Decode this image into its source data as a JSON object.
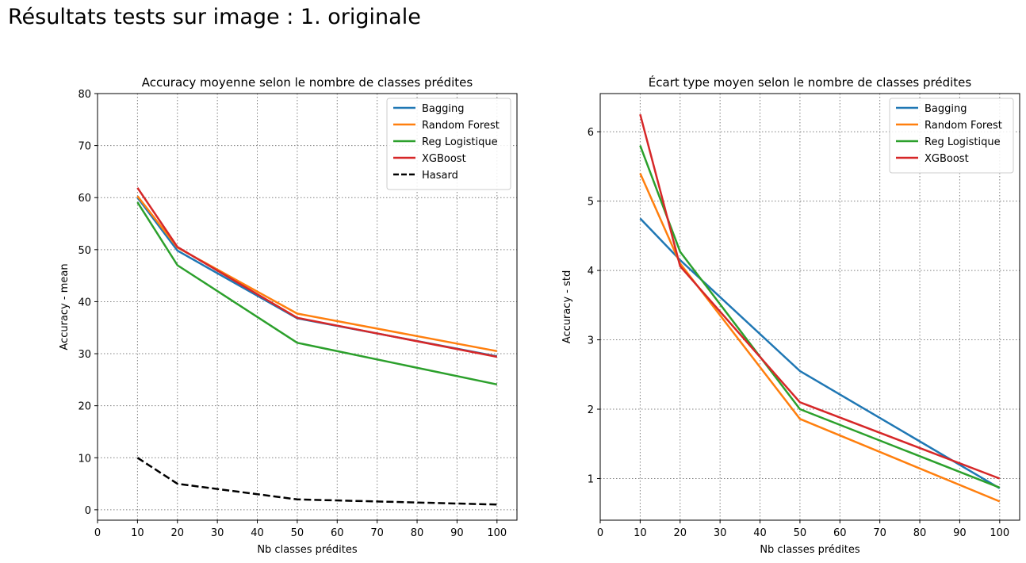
{
  "suptitle": "Résultats tests sur image : 1. originale",
  "chart_data": [
    {
      "type": "line",
      "title": "Accuracy moyenne selon le nombre de classes prédites",
      "xlabel": "Nb classes prédites",
      "ylabel": "Accuracy - mean",
      "xlim": [
        0,
        105
      ],
      "ylim": [
        -2,
        80
      ],
      "xticks": [
        0,
        10,
        20,
        30,
        40,
        50,
        60,
        70,
        80,
        90,
        100
      ],
      "yticks": [
        0,
        10,
        20,
        30,
        40,
        50,
        60,
        70,
        80
      ],
      "grid": true,
      "legend_position": "top-right",
      "x": [
        10,
        20,
        50,
        100
      ],
      "series": [
        {
          "name": "Bagging",
          "values": [
            60.0,
            49.8,
            36.8,
            29.5
          ],
          "color": "#1f77b4",
          "dashed": false
        },
        {
          "name": "Random Forest",
          "values": [
            60.3,
            50.4,
            37.7,
            30.5
          ],
          "color": "#ff7f0e",
          "dashed": false
        },
        {
          "name": "Reg Logistique",
          "values": [
            59.1,
            47.0,
            32.1,
            24.1
          ],
          "color": "#2ca02c",
          "dashed": false
        },
        {
          "name": "XGBoost",
          "values": [
            61.9,
            50.5,
            36.9,
            29.4
          ],
          "color": "#d62728",
          "dashed": false
        },
        {
          "name": "Hasard",
          "values": [
            10,
            5,
            2,
            1
          ],
          "color": "#000000",
          "dashed": true
        }
      ]
    },
    {
      "type": "line",
      "title": "Écart type moyen selon le nombre de classes prédites",
      "xlabel": "Nb classes prédites",
      "ylabel": "Accuracy - std",
      "xlim": [
        0,
        105
      ],
      "ylim": [
        0.4,
        6.55
      ],
      "xticks": [
        0,
        10,
        20,
        30,
        40,
        50,
        60,
        70,
        80,
        90,
        100
      ],
      "yticks": [
        1,
        2,
        3,
        4,
        5,
        6
      ],
      "grid": true,
      "legend_position": "top-right",
      "x": [
        10,
        20,
        50,
        100
      ],
      "series": [
        {
          "name": "Bagging",
          "values": [
            4.75,
            4.15,
            2.55,
            0.86
          ],
          "color": "#1f77b4",
          "dashed": false
        },
        {
          "name": "Random Forest",
          "values": [
            5.4,
            4.1,
            1.86,
            0.67
          ],
          "color": "#ff7f0e",
          "dashed": false
        },
        {
          "name": "Reg Logistique",
          "values": [
            5.8,
            4.27,
            2.0,
            0.87
          ],
          "color": "#2ca02c",
          "dashed": false
        },
        {
          "name": "XGBoost",
          "values": [
            6.25,
            4.06,
            2.1,
            1.0
          ],
          "color": "#d62728",
          "dashed": false
        }
      ]
    }
  ]
}
